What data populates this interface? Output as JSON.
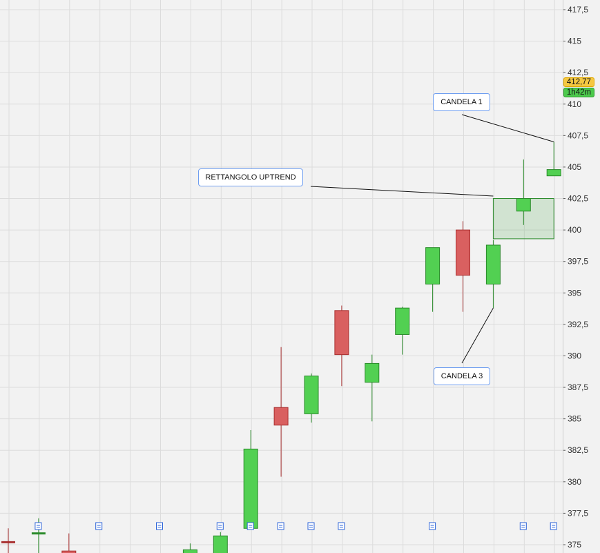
{
  "chart_data": {
    "type": "candlestick",
    "y_axis": {
      "ticks": [
        "375",
        "377,5",
        "380",
        "382,5",
        "385",
        "387,5",
        "390",
        "392,5",
        "395",
        "397,5",
        "400",
        "402,5",
        "405",
        "407,5",
        "410",
        "412,5",
        "415",
        "417,5"
      ],
      "range": [
        375,
        417.5
      ],
      "position": "right"
    },
    "grid": true,
    "candles": [
      {
        "i": 0,
        "open": 375.2,
        "close": 375.2,
        "high": 376.3,
        "low": 374.0,
        "color": "red"
      },
      {
        "i": 1,
        "open": 375.9,
        "close": 375.9,
        "high": 377.1,
        "low": 374.0,
        "color": "green"
      },
      {
        "i": 2,
        "open": 374.5,
        "close": 374.0,
        "high": 375.9,
        "low": 374.0,
        "color": "red"
      },
      {
        "i": 6,
        "open": 374.0,
        "close": 374.6,
        "high": 375.1,
        "low": 374.0,
        "color": "green"
      },
      {
        "i": 7,
        "open": 374.0,
        "close": 375.7,
        "high": 376.0,
        "low": 374.0,
        "color": "green"
      },
      {
        "i": 8,
        "open": 376.3,
        "close": 382.6,
        "high": 384.1,
        "low": 376.3,
        "color": "green"
      },
      {
        "i": 9,
        "open": 385.9,
        "close": 384.5,
        "high": 390.7,
        "low": 380.4,
        "color": "red"
      },
      {
        "i": 10,
        "open": 385.4,
        "close": 388.4,
        "high": 388.6,
        "low": 384.7,
        "color": "green"
      },
      {
        "i": 11,
        "open": 393.6,
        "close": 390.1,
        "high": 394.0,
        "low": 387.6,
        "color": "red"
      },
      {
        "i": 12,
        "open": 387.9,
        "close": 389.4,
        "high": 390.1,
        "low": 384.8,
        "color": "green"
      },
      {
        "i": 13,
        "open": 391.7,
        "close": 393.8,
        "high": 393.9,
        "low": 390.1,
        "color": "green"
      },
      {
        "i": 14,
        "open": 395.7,
        "close": 398.6,
        "high": 398.6,
        "low": 393.5,
        "color": "green"
      },
      {
        "i": 15,
        "open": 400.0,
        "close": 396.4,
        "high": 400.7,
        "low": 393.5,
        "color": "red"
      },
      {
        "i": 16,
        "open": 395.7,
        "close": 398.8,
        "high": 399.2,
        "low": 393.8,
        "color": "green"
      },
      {
        "i": 17,
        "open": 401.5,
        "close": 402.5,
        "high": 405.6,
        "low": 400.4,
        "color": "green"
      },
      {
        "i": 18,
        "open": 404.3,
        "close": 404.8,
        "high": 407.0,
        "low": 404.3,
        "color": "green"
      }
    ],
    "rectangle": {
      "from_i": 16,
      "to_i": 18,
      "top": 402.5,
      "bottom": 399.3
    },
    "annotations": [
      {
        "text": "CANDELA 1",
        "target_i": 18,
        "target_price": 407.0
      },
      {
        "text": "RETTANGOLO UPTREND",
        "target_i": 16,
        "target_price": 402.7
      },
      {
        "text": "CANDELA 3",
        "target_i": 16,
        "target_price": 393.8
      }
    ],
    "event_icon_indices": [
      1,
      3,
      5,
      7,
      8,
      9,
      10,
      11,
      14,
      17,
      18
    ],
    "last_price": "412,77",
    "countdown": "1h42m",
    "colors": {
      "up": "#52d052",
      "down": "#d96060",
      "up_border": "#2a8a2a",
      "down_border": "#a83030",
      "last_price_bg": "#f5c842",
      "countdown_bg": "#4cc94c"
    }
  }
}
